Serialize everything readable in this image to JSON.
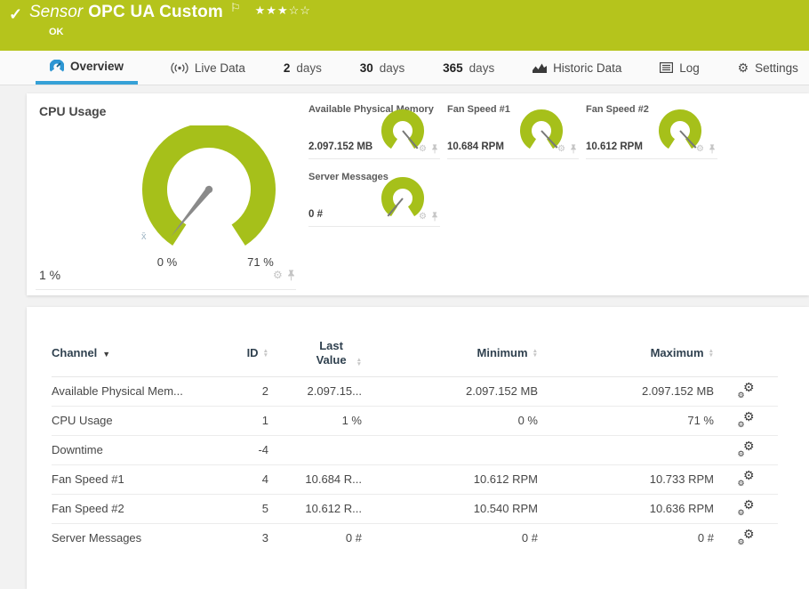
{
  "header": {
    "check_icon": "✓",
    "kind": "Sensor",
    "title": "OPC UA Custom",
    "flag_icon": "⚐",
    "stars_filled": "★★★",
    "stars_empty": "☆☆",
    "status": "OK",
    "bg_color": "#b5c41c"
  },
  "tabs": [
    {
      "label": "Overview",
      "icon": "gauge-icon",
      "active": true
    },
    {
      "label": "Live Data",
      "icon": "live-data-icon",
      "active": false
    },
    {
      "num": "2",
      "unit": "days",
      "active": false
    },
    {
      "num": "30",
      "unit": "days",
      "active": false
    },
    {
      "num": "365",
      "unit": "days",
      "active": false
    },
    {
      "label": "Historic Data",
      "icon": "historic-data-icon",
      "active": false
    },
    {
      "label": "Log",
      "icon": "log-icon",
      "active": false
    },
    {
      "label": "Settings",
      "icon": "settings-gear-icon",
      "active": false
    }
  ],
  "colors": {
    "header_green": "#b5c41c",
    "gauge_green": "#a6c01a",
    "accent_blue": "#35a1d7",
    "needle_gray": "#8a8a8a"
  },
  "chart_data": [
    {
      "type": "gauge",
      "title": "CPU Usage",
      "value_label": "1 %",
      "value": 1,
      "unit": "%",
      "scale_min_label": "0 %",
      "scale_max_label": "71 %",
      "scale_min": 0,
      "scale_max": 71,
      "avg_marker": "x̄",
      "needle_deg": -141,
      "arc_span_deg": 294,
      "color": "#a6c01a"
    },
    {
      "type": "gauge",
      "title": "Available Physical Memory",
      "value_label": "2.097.152 MB",
      "value": 2097152,
      "unit": "MB",
      "needle_deg": 140,
      "color": "#a6c01a"
    },
    {
      "type": "gauge",
      "title": "Fan Speed #1",
      "value_label": "10.684 RPM",
      "value": 10684,
      "unit": "RPM",
      "needle_deg": 137,
      "color": "#a6c01a"
    },
    {
      "type": "gauge",
      "title": "Fan Speed #2",
      "value_label": "10.612 RPM",
      "value": 10612,
      "unit": "RPM",
      "needle_deg": 137,
      "color": "#a6c01a"
    },
    {
      "type": "gauge",
      "title": "Server Messages",
      "value_label": "0 #",
      "value": 0,
      "unit": "#",
      "needle_deg": -140,
      "color": "#a6c01a"
    }
  ],
  "table": {
    "columns": [
      "Channel",
      "ID",
      "Last Value",
      "Minimum",
      "Maximum"
    ],
    "sorted_by": "Channel",
    "sort_direction": "asc",
    "rows": [
      {
        "channel": "Available Physical Mem...",
        "id": "2",
        "last": "2.097.15...",
        "min": "2.097.152 MB",
        "max": "2.097.152 MB"
      },
      {
        "channel": "CPU Usage",
        "id": "1",
        "last": "1 %",
        "min": "0 %",
        "max": "71 %"
      },
      {
        "channel": "Downtime",
        "id": "-4",
        "last": "",
        "min": "",
        "max": ""
      },
      {
        "channel": "Fan Speed #1",
        "id": "4",
        "last": "10.684 R...",
        "min": "10.612 RPM",
        "max": "10.733 RPM"
      },
      {
        "channel": "Fan Speed #2",
        "id": "5",
        "last": "10.612 R...",
        "min": "10.540 RPM",
        "max": "10.636 RPM"
      },
      {
        "channel": "Server Messages",
        "id": "3",
        "last": "0 #",
        "min": "0 #",
        "max": "0 #"
      }
    ]
  }
}
